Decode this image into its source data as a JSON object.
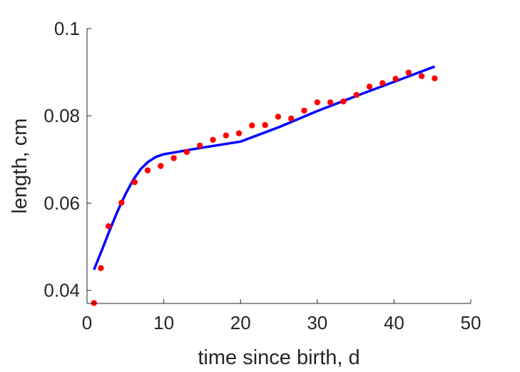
{
  "chart_data": {
    "type": "scatter",
    "xlabel": "time since birth, d",
    "ylabel": "length, cm",
    "xlim": [
      0,
      50
    ],
    "ylim": [
      0.037,
      0.1
    ],
    "xticks": [
      0,
      10,
      20,
      30,
      40,
      50
    ],
    "yticks": [
      0.04,
      0.06,
      0.08,
      0.1
    ],
    "xtick_labels": [
      "0",
      "10",
      "20",
      "30",
      "40",
      "50"
    ],
    "ytick_labels": [
      "0.04",
      "0.06",
      "0.08",
      "0.1"
    ],
    "grid": false,
    "legend": false,
    "series": [
      {
        "kind": "points",
        "color": "#ff0000",
        "x": [
          0.9,
          1.8,
          2.8,
          4.5,
          6.2,
          7.9,
          9.6,
          11.3,
          13.0,
          14.7,
          16.4,
          18.1,
          19.8,
          21.5,
          23.2,
          24.9,
          26.6,
          28.3,
          30.0,
          31.7,
          33.4,
          35.1,
          36.8,
          38.5,
          40.2,
          41.9,
          43.6,
          45.3
        ],
        "y": [
          0.0371,
          0.0451,
          0.0547,
          0.0601,
          0.0648,
          0.0675,
          0.0685,
          0.0703,
          0.0717,
          0.0732,
          0.0745,
          0.0755,
          0.076,
          0.0778,
          0.0779,
          0.0798,
          0.0794,
          0.0812,
          0.0831,
          0.0831,
          0.0833,
          0.0848,
          0.0867,
          0.0875,
          0.0885,
          0.0899,
          0.0891,
          0.0886
        ]
      },
      {
        "kind": "line",
        "color": "#0000ff",
        "x": [
          0.9,
          2,
          3,
          4,
          5,
          6,
          7,
          8,
          9,
          10,
          11,
          12,
          15,
          20,
          25,
          30,
          35,
          40,
          45.3
        ],
        "y": [
          0.0447,
          0.0495,
          0.054,
          0.0582,
          0.062,
          0.0653,
          0.0678,
          0.0695,
          0.0706,
          0.0712,
          0.0715,
          0.0718,
          0.0727,
          0.0741,
          0.0774,
          0.0811,
          0.0845,
          0.0878,
          0.0913
        ]
      }
    ]
  }
}
